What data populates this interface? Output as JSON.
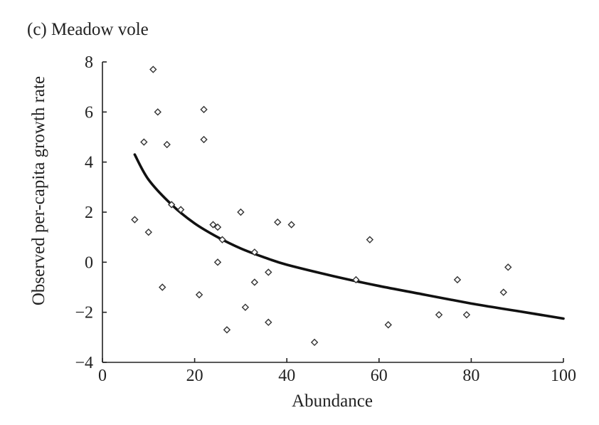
{
  "panel_title": "(c) Meadow vole",
  "chart_data": {
    "type": "scatter",
    "title": "(c) Meadow vole",
    "xlabel": "Abundance",
    "ylabel": "Observed per-capita growth rate",
    "xlim": [
      0,
      100
    ],
    "ylim": [
      -4,
      8
    ],
    "xticks": [
      0,
      20,
      40,
      60,
      80,
      100
    ],
    "yticks": [
      -4,
      -2,
      0,
      2,
      4,
      6,
      8
    ],
    "xtick_labels": [
      "0",
      "20",
      "40",
      "60",
      "80",
      "100"
    ],
    "ytick_labels": [
      "−4",
      "−2",
      "0",
      "2",
      "4",
      "6",
      "8"
    ],
    "grid": false,
    "points": [
      {
        "x": 7,
        "y": 1.7
      },
      {
        "x": 9,
        "y": 4.8
      },
      {
        "x": 10,
        "y": 1.2
      },
      {
        "x": 11,
        "y": 7.7
      },
      {
        "x": 12,
        "y": 6.0
      },
      {
        "x": 13,
        "y": -1.0
      },
      {
        "x": 14,
        "y": 4.7
      },
      {
        "x": 15,
        "y": 2.3
      },
      {
        "x": 17,
        "y": 2.1
      },
      {
        "x": 21,
        "y": -1.3
      },
      {
        "x": 22,
        "y": 6.1
      },
      {
        "x": 22,
        "y": 4.9
      },
      {
        "x": 24,
        "y": 1.5
      },
      {
        "x": 25,
        "y": 1.4
      },
      {
        "x": 25,
        "y": 0.0
      },
      {
        "x": 26,
        "y": 0.9
      },
      {
        "x": 27,
        "y": -2.7
      },
      {
        "x": 30,
        "y": 2.0
      },
      {
        "x": 31,
        "y": -1.8
      },
      {
        "x": 33,
        "y": 0.4
      },
      {
        "x": 33,
        "y": -0.8
      },
      {
        "x": 36,
        "y": -0.4
      },
      {
        "x": 36,
        "y": -2.4
      },
      {
        "x": 38,
        "y": 1.6
      },
      {
        "x": 41,
        "y": 1.5
      },
      {
        "x": 46,
        "y": -3.2
      },
      {
        "x": 55,
        "y": -0.7
      },
      {
        "x": 58,
        "y": 0.9
      },
      {
        "x": 62,
        "y": -2.5
      },
      {
        "x": 73,
        "y": -2.1
      },
      {
        "x": 77,
        "y": -0.7
      },
      {
        "x": 79,
        "y": -2.1
      },
      {
        "x": 87,
        "y": -1.2
      },
      {
        "x": 88,
        "y": -0.2
      }
    ],
    "fit_curve": [
      {
        "x": 7,
        "y": 4.3
      },
      {
        "x": 10,
        "y": 3.3
      },
      {
        "x": 15,
        "y": 2.3
      },
      {
        "x": 20,
        "y": 1.55
      },
      {
        "x": 25,
        "y": 1.0
      },
      {
        "x": 30,
        "y": 0.55
      },
      {
        "x": 35,
        "y": 0.2
      },
      {
        "x": 40,
        "y": -0.1
      },
      {
        "x": 50,
        "y": -0.55
      },
      {
        "x": 60,
        "y": -0.95
      },
      {
        "x": 70,
        "y": -1.3
      },
      {
        "x": 80,
        "y": -1.65
      },
      {
        "x": 90,
        "y": -1.95
      },
      {
        "x": 100,
        "y": -2.25
      }
    ]
  }
}
